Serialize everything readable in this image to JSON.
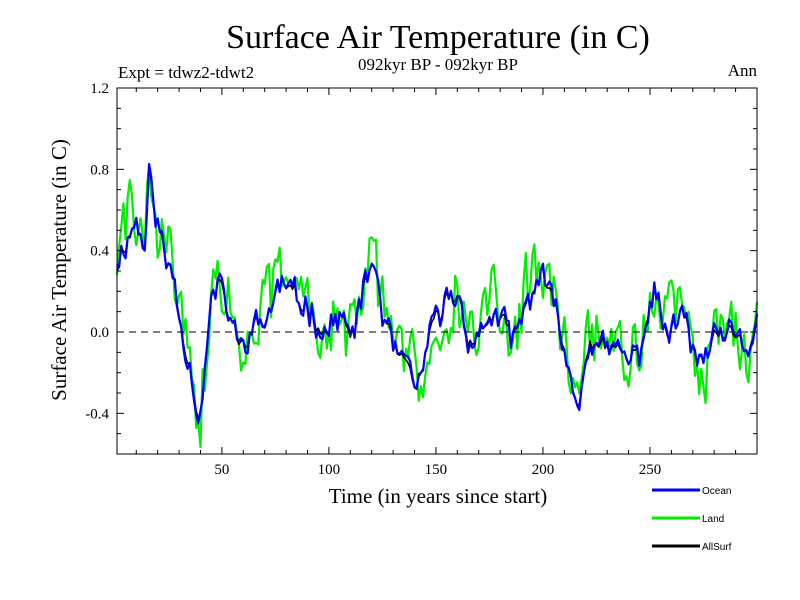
{
  "chart_data": {
    "type": "line",
    "title": "Surface Air Temperature (in C)",
    "subtitle_left": "Expt = tdwz2-tdwt2",
    "subtitle_center": "092kyr BP - 092kyr BP",
    "subtitle_right": "Ann",
    "xlabel": "Time (in years since start)",
    "ylabel": "Surface Air Temperature (in C)",
    "xlim": [
      1,
      300
    ],
    "ylim": [
      -0.6,
      1.2
    ],
    "xticks": [
      50,
      100,
      150,
      200,
      250
    ],
    "xtick_labels": [
      "50",
      "100",
      "150",
      "200",
      "250"
    ],
    "yticks": [
      -0.4,
      0.0,
      0.4,
      0.8,
      1.2
    ],
    "ytick_labels": [
      "-0.4",
      "0.0",
      "0.4",
      "0.8",
      "1.2"
    ],
    "zero_line": "dashed",
    "grid": false,
    "legend_position": "bottom-right",
    "series_colors": {
      "Ocean": "#0000ff",
      "Land": "#00ee00",
      "AllSurf": "#000000"
    },
    "knots": {
      "x": [
        1,
        5,
        10,
        12,
        14,
        16,
        18,
        20,
        22,
        24,
        26,
        28,
        30,
        33,
        35,
        38,
        40,
        42,
        45,
        48,
        50,
        55,
        58,
        62,
        66,
        70,
        74,
        78,
        80,
        85,
        90,
        95,
        100,
        105,
        110,
        115,
        118,
        120,
        122,
        125,
        130,
        135,
        138,
        141,
        144,
        150,
        155,
        160,
        162,
        165,
        170,
        175,
        180,
        185,
        190,
        195,
        199,
        203,
        208,
        212,
        216,
        218,
        222,
        226,
        232,
        237,
        240,
        245,
        250,
        253,
        258,
        265,
        272,
        278,
        284,
        290,
        296,
        300
      ],
      "y": [
        0.35,
        0.45,
        0.55,
        0.48,
        0.42,
        0.78,
        0.62,
        0.55,
        0.45,
        0.3,
        0.35,
        0.25,
        0.1,
        -0.05,
        -0.15,
        -0.35,
        -0.4,
        -0.2,
        0.15,
        0.22,
        0.18,
        0.05,
        -0.1,
        0.0,
        0.02,
        0.05,
        0.15,
        0.25,
        0.2,
        0.15,
        0.15,
        0.05,
        0.0,
        0.1,
        -0.05,
        0.15,
        0.25,
        0.35,
        0.3,
        0.1,
        -0.1,
        -0.15,
        -0.25,
        -0.3,
        -0.15,
        0.05,
        0.15,
        0.2,
        0.1,
        0.0,
        -0.05,
        0.1,
        0.05,
        -0.05,
        0.05,
        0.2,
        0.3,
        0.15,
        0.05,
        -0.2,
        -0.35,
        -0.25,
        0.0,
        -0.1,
        -0.1,
        -0.1,
        -0.15,
        -0.1,
        0.15,
        0.2,
        -0.05,
        0.1,
        -0.15,
        -0.1,
        0.0,
        -0.05,
        -0.1,
        0.1
      ]
    },
    "series": [
      {
        "name": "Ocean",
        "color": "#0000ff",
        "noise_amp": 0.07,
        "offset": 0.0,
        "seed": 11
      },
      {
        "name": "Land",
        "color": "#00ee00",
        "noise_amp": 0.16,
        "offset": 0.02,
        "seed": 29
      },
      {
        "name": "AllSurf",
        "color": "#000000",
        "noise_amp": 0.06,
        "offset": 0.0,
        "seed": 11
      }
    ]
  }
}
